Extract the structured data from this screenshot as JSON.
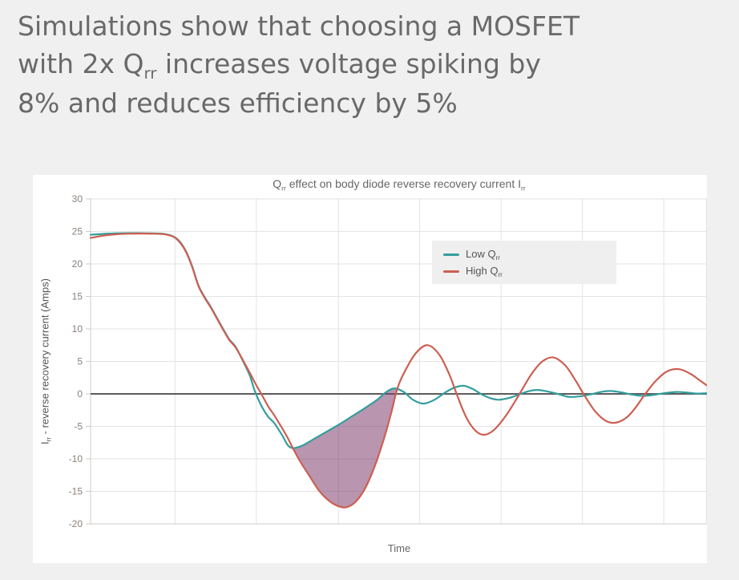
{
  "page": {
    "background": "#f0f0f0",
    "card_background": "#ffffff"
  },
  "heading": {
    "part1": "Simulations show that choosing a MOSFET\nwith 2x Q",
    "sub": "rr",
    "part2": " increases voltage spiking by\n8% and reduces efficiency by 5%",
    "color": "#696969"
  },
  "chart_data": {
    "type": "line",
    "title": {
      "part1": "Q",
      "sub1": "rr",
      "part2": " effect on body diode reverse recovery current I",
      "sub2": "rr"
    },
    "x_axis": {
      "label": "Time",
      "range": [
        0,
        100
      ],
      "tick_labels_shown": false,
      "gridlines_t": [
        13.7,
        26.9,
        40.2,
        53.4,
        66.6,
        79.8,
        93.0
      ]
    },
    "y_axis": {
      "title": {
        "part1": "I",
        "sub1": "rr",
        "part2": " - reverse recovery current (Amps)"
      },
      "ticks": [
        30,
        25,
        20,
        15,
        10,
        5,
        0,
        -5,
        -10,
        -15,
        -20
      ],
      "range": [
        -21,
        30.5
      ]
    },
    "legend": {
      "position": "inside-top-right",
      "items": [
        {
          "label": "Low Q",
          "label_sub": "rr",
          "color": "#339e9e"
        },
        {
          "label": "High Q",
          "label_sub": "rr",
          "color": "#cd5f52"
        }
      ]
    },
    "series": [
      {
        "name": "Low Qrr",
        "color": "#339e9e",
        "points": [
          [
            0,
            24.5
          ],
          [
            2,
            24.62
          ],
          [
            4,
            24.7
          ],
          [
            6,
            24.74
          ],
          [
            8,
            24.74
          ],
          [
            10,
            24.7
          ],
          [
            12,
            24.6
          ],
          [
            13.5,
            24.2
          ],
          [
            14.5,
            23.4
          ],
          [
            15.5,
            21.9
          ],
          [
            16.5,
            19.6
          ],
          [
            17.5,
            16.7
          ],
          [
            18.5,
            14.9
          ],
          [
            19.5,
            13.4
          ],
          [
            20.5,
            11.7
          ],
          [
            21.5,
            10.0
          ],
          [
            22.5,
            8.4
          ],
          [
            23.5,
            7.3
          ],
          [
            24.6,
            5.3
          ],
          [
            25.8,
            2.9
          ],
          [
            26.7,
            0.3
          ],
          [
            27.8,
            -2.0
          ],
          [
            28.8,
            -3.5
          ],
          [
            29.8,
            -4.5
          ],
          [
            31.1,
            -6.4
          ],
          [
            32.0,
            -7.9
          ],
          [
            32.8,
            -8.35
          ],
          [
            33.8,
            -8.15
          ],
          [
            34.5,
            -7.9
          ],
          [
            36.5,
            -6.8
          ],
          [
            38.5,
            -5.7
          ],
          [
            40.5,
            -4.6
          ],
          [
            42.5,
            -3.4
          ],
          [
            44.5,
            -2.2
          ],
          [
            46.5,
            -0.9
          ],
          [
            48.0,
            0.3
          ],
          [
            49.3,
            0.85
          ],
          [
            50.8,
            0.3
          ],
          [
            52.3,
            -0.9
          ],
          [
            54.0,
            -1.5
          ],
          [
            55.8,
            -0.9
          ],
          [
            57.5,
            0.2
          ],
          [
            59.0,
            0.95
          ],
          [
            60.5,
            1.25
          ],
          [
            62.0,
            0.75
          ],
          [
            63.5,
            -0.1
          ],
          [
            65.0,
            -0.7
          ],
          [
            66.3,
            -0.9
          ],
          [
            68.0,
            -0.6
          ],
          [
            69.5,
            -0.1
          ],
          [
            71.0,
            0.4
          ],
          [
            72.5,
            0.6
          ],
          [
            74.0,
            0.4
          ],
          [
            75.8,
            0.0
          ],
          [
            77.5,
            -0.45
          ],
          [
            79.2,
            -0.4
          ],
          [
            81.0,
            -0.1
          ],
          [
            82.8,
            0.3
          ],
          [
            84.3,
            0.45
          ],
          [
            86.0,
            0.25
          ],
          [
            87.8,
            -0.1
          ],
          [
            89.4,
            -0.3
          ],
          [
            91.0,
            -0.2
          ],
          [
            93.0,
            0.1
          ],
          [
            95.0,
            0.3
          ],
          [
            96.8,
            0.2
          ],
          [
            98.4,
            0.05
          ],
          [
            100,
            0.1
          ]
        ]
      },
      {
        "name": "High Qrr",
        "color": "#cd5f52",
        "points": [
          [
            0,
            24.0
          ],
          [
            2,
            24.35
          ],
          [
            4,
            24.55
          ],
          [
            6,
            24.65
          ],
          [
            8,
            24.68
          ],
          [
            10,
            24.66
          ],
          [
            12,
            24.56
          ],
          [
            13.5,
            24.15
          ],
          [
            14.5,
            23.3
          ],
          [
            15.5,
            21.8
          ],
          [
            16.5,
            19.5
          ],
          [
            17.5,
            16.6
          ],
          [
            18.5,
            14.8
          ],
          [
            19.5,
            13.3
          ],
          [
            20.5,
            11.6
          ],
          [
            21.5,
            9.9
          ],
          [
            22.5,
            8.3
          ],
          [
            23.5,
            7.2
          ],
          [
            24.6,
            5.4
          ],
          [
            25.8,
            3.3
          ],
          [
            26.8,
            1.5
          ],
          [
            27.7,
            0.0
          ],
          [
            28.8,
            -1.9
          ],
          [
            29.8,
            -3.3
          ],
          [
            31.1,
            -5.3
          ],
          [
            32.0,
            -6.8
          ],
          [
            32.8,
            -8.3
          ],
          [
            34.0,
            -10.4
          ],
          [
            35.5,
            -12.6
          ],
          [
            37.0,
            -14.8
          ],
          [
            38.5,
            -16.3
          ],
          [
            40.0,
            -17.2
          ],
          [
            41.5,
            -17.45
          ],
          [
            43.0,
            -16.6
          ],
          [
            44.5,
            -14.6
          ],
          [
            46.0,
            -11.4
          ],
          [
            47.5,
            -7.2
          ],
          [
            48.7,
            -3.2
          ],
          [
            49.8,
            0.9
          ],
          [
            51.0,
            3.5
          ],
          [
            52.8,
            6.3
          ],
          [
            54.7,
            7.5
          ],
          [
            56.6,
            6.0
          ],
          [
            58.2,
            3.0
          ],
          [
            59.5,
            -0.3
          ],
          [
            61.0,
            -3.7
          ],
          [
            62.5,
            -5.7
          ],
          [
            63.9,
            -6.3
          ],
          [
            65.5,
            -5.5
          ],
          [
            67.5,
            -3.2
          ],
          [
            69.6,
            0.0
          ],
          [
            71.5,
            3.0
          ],
          [
            73.3,
            5.0
          ],
          [
            75.1,
            5.6
          ],
          [
            77.0,
            4.4
          ],
          [
            78.6,
            2.2
          ],
          [
            80.1,
            -0.2
          ],
          [
            81.8,
            -2.6
          ],
          [
            83.5,
            -4.1
          ],
          [
            85.1,
            -4.45
          ],
          [
            87.0,
            -3.6
          ],
          [
            88.5,
            -2.0
          ],
          [
            90.0,
            0.0
          ],
          [
            91.8,
            2.1
          ],
          [
            93.6,
            3.5
          ],
          [
            95.5,
            3.8
          ],
          [
            97.3,
            3.1
          ],
          [
            98.8,
            2.1
          ],
          [
            100,
            1.3
          ]
        ]
      }
    ],
    "fill_between": {
      "between": [
        "Low Qrr",
        "High Qrr"
      ],
      "t_start": 32.8,
      "t_end": 49.8,
      "color": "rgba(128,62,110,0.55)"
    },
    "style": {
      "grid_color": "#e3e3e3",
      "zero_line_color": "#5c5c5c",
      "axis_line_color": "#cfcbc8",
      "tick_label_color": "#8a817b",
      "title_color": "#666666",
      "axis_title_color": "#555555",
      "legend_bg": "#efefef",
      "legend_text_color": "#555555"
    }
  }
}
